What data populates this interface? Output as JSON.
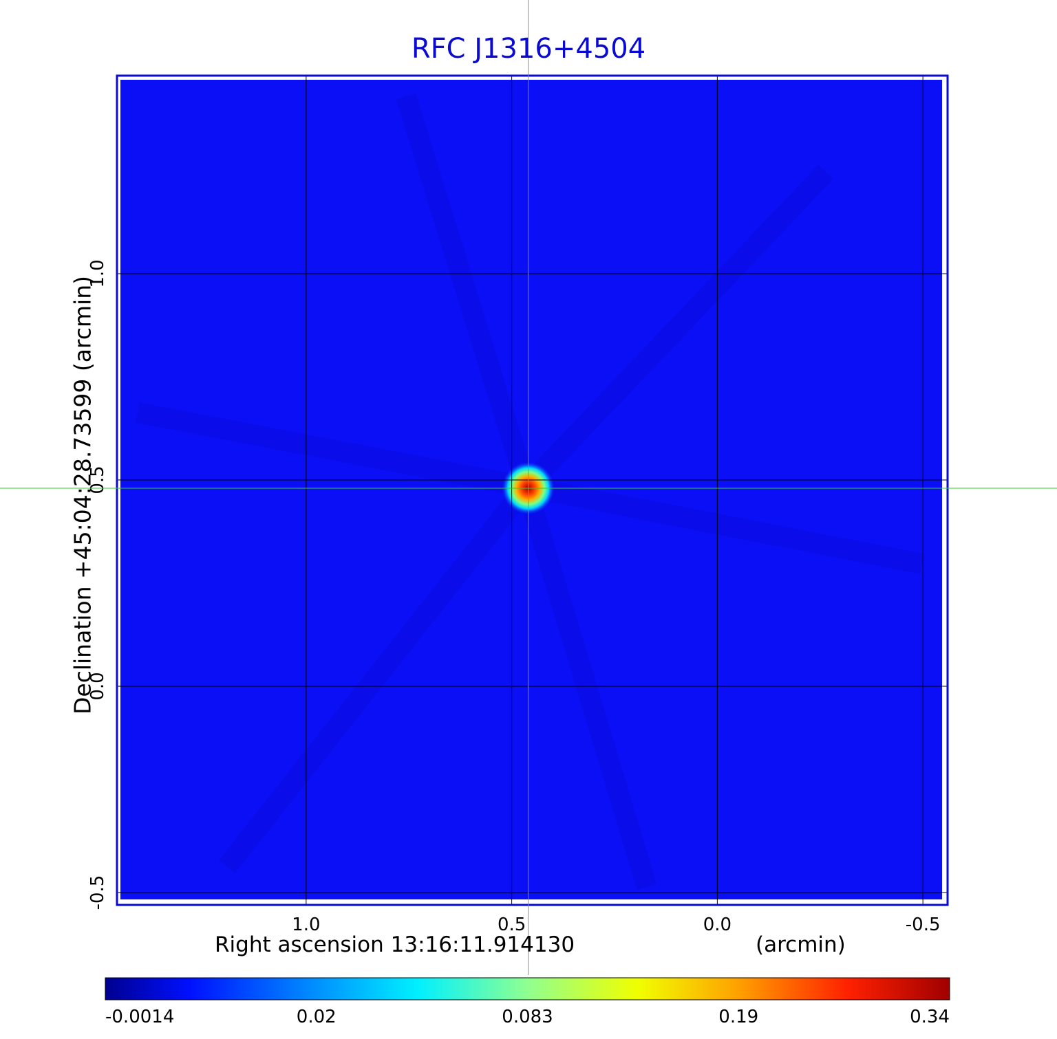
{
  "chart_data": {
    "type": "heatmap",
    "title": "RFC J1316+4504",
    "xlabel": "Right ascension  13:16:11.914130",
    "xlabel_unit": "(arcmin)",
    "ylabel": "Declination  +45:04:28.73599  (arcmin)",
    "x_ticks": [
      {
        "value": 1.0,
        "label": "1.0"
      },
      {
        "value": 0.5,
        "label": "0.5"
      },
      {
        "value": 0.0,
        "label": "0.0"
      },
      {
        "value": -0.5,
        "label": "-0.5"
      }
    ],
    "y_ticks": [
      {
        "value": 1.0,
        "label": "1.0"
      },
      {
        "value": 0.5,
        "label": "0.5"
      },
      {
        "value": 0.0,
        "label": "0.0"
      },
      {
        "value": -0.5,
        "label": "-0.5"
      }
    ],
    "xlim": [
      1.46,
      -0.56
    ],
    "ylim": [
      -0.53,
      1.48
    ],
    "x_reversed": true,
    "grid": true,
    "source_peak": {
      "x": 0.46,
      "y": 0.48,
      "value": 0.34
    },
    "crosshair": {
      "x": 0.46,
      "y": 0.48,
      "color": "#33cc33"
    },
    "colorbar": {
      "colormap": "jet",
      "tick_labels": [
        "-0.0014",
        "0.02",
        "0.083",
        "0.19",
        "0.34"
      ],
      "min": -0.0014,
      "max": 0.34
    },
    "colors": {
      "background": "#0a0ff5",
      "title": "#0a0ad0",
      "frame": "#0a0ad0",
      "grid": "#000000",
      "crosshair": "#33cc33"
    }
  }
}
